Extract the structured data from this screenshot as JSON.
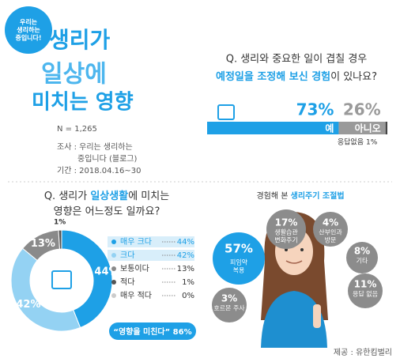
{
  "logo": [
    "우리는",
    "생리하는",
    "중입니다!"
  ],
  "title": [
    "생리가",
    "일상에",
    "미치는 영향"
  ],
  "info": [
    "N = 1,265",
    "조사 : 우리는 생리하는",
    "중입니다 (블로그)",
    "기간 : 2018.04.16~30"
  ],
  "footer": "제공 : 유한킴벌리",
  "chart_data": [
    {
      "type": "bar",
      "title": "Q. 생리와 중요한 일이 겹칠 경우",
      "subtitle_parts": [
        "예정일을 조정해 보신 경험",
        "이 있나요?"
      ],
      "xlim": [
        0,
        100
      ],
      "series": [
        {
          "name": "예",
          "color": "#1ea0e6",
          "values": [
            73
          ],
          "value_labels": [
            "73%"
          ]
        },
        {
          "name": "아니오",
          "color": "#9a9a9a",
          "values": [
            26
          ],
          "value_labels": [
            "26%"
          ]
        },
        {
          "name": "응답없음",
          "color": "#444444",
          "values": [
            1
          ],
          "value_labels": [
            "1%"
          ]
        }
      ]
    },
    {
      "type": "pie",
      "title_parts": [
        "Q. 생리가 ",
        "일상생활",
        "에 미치는"
      ],
      "title_line2": "영향은 어느정도 일까요?",
      "categories": [
        "매우 크다",
        "크다",
        "보통이다",
        "적다",
        "매우 적다"
      ],
      "values": [
        44,
        42,
        13,
        1,
        0
      ],
      "value_labels": [
        "44%",
        "42%",
        "13%",
        "1%",
        "0%"
      ],
      "colors": [
        "#1ea0e6",
        "#94d2f3",
        "#8a8a8a",
        "#555555",
        "#cccccc"
      ],
      "annotation": "“영향을 미친다” 86%"
    },
    {
      "type": "bubble",
      "title_parts": [
        "경험해 본 ",
        "생리주기 조절법"
      ],
      "categories": [
        [
          "피임약",
          "복용"
        ],
        [
          "생활습관",
          "변화주기"
        ],
        [
          "산부인과",
          "방문"
        ],
        [
          "기타"
        ],
        [
          "응답 없음"
        ],
        [
          "호르몬 주사"
        ]
      ],
      "values": [
        57,
        17,
        4,
        8,
        11,
        3
      ],
      "value_labels": [
        "57%",
        "17%",
        "4%",
        "8%",
        "11%",
        "3%"
      ],
      "colors": [
        "#1ea0e6",
        "#8c8c8c",
        "#8c8c8c",
        "#8c8c8c",
        "#8c8c8c",
        "#8c8c8c"
      ]
    }
  ]
}
